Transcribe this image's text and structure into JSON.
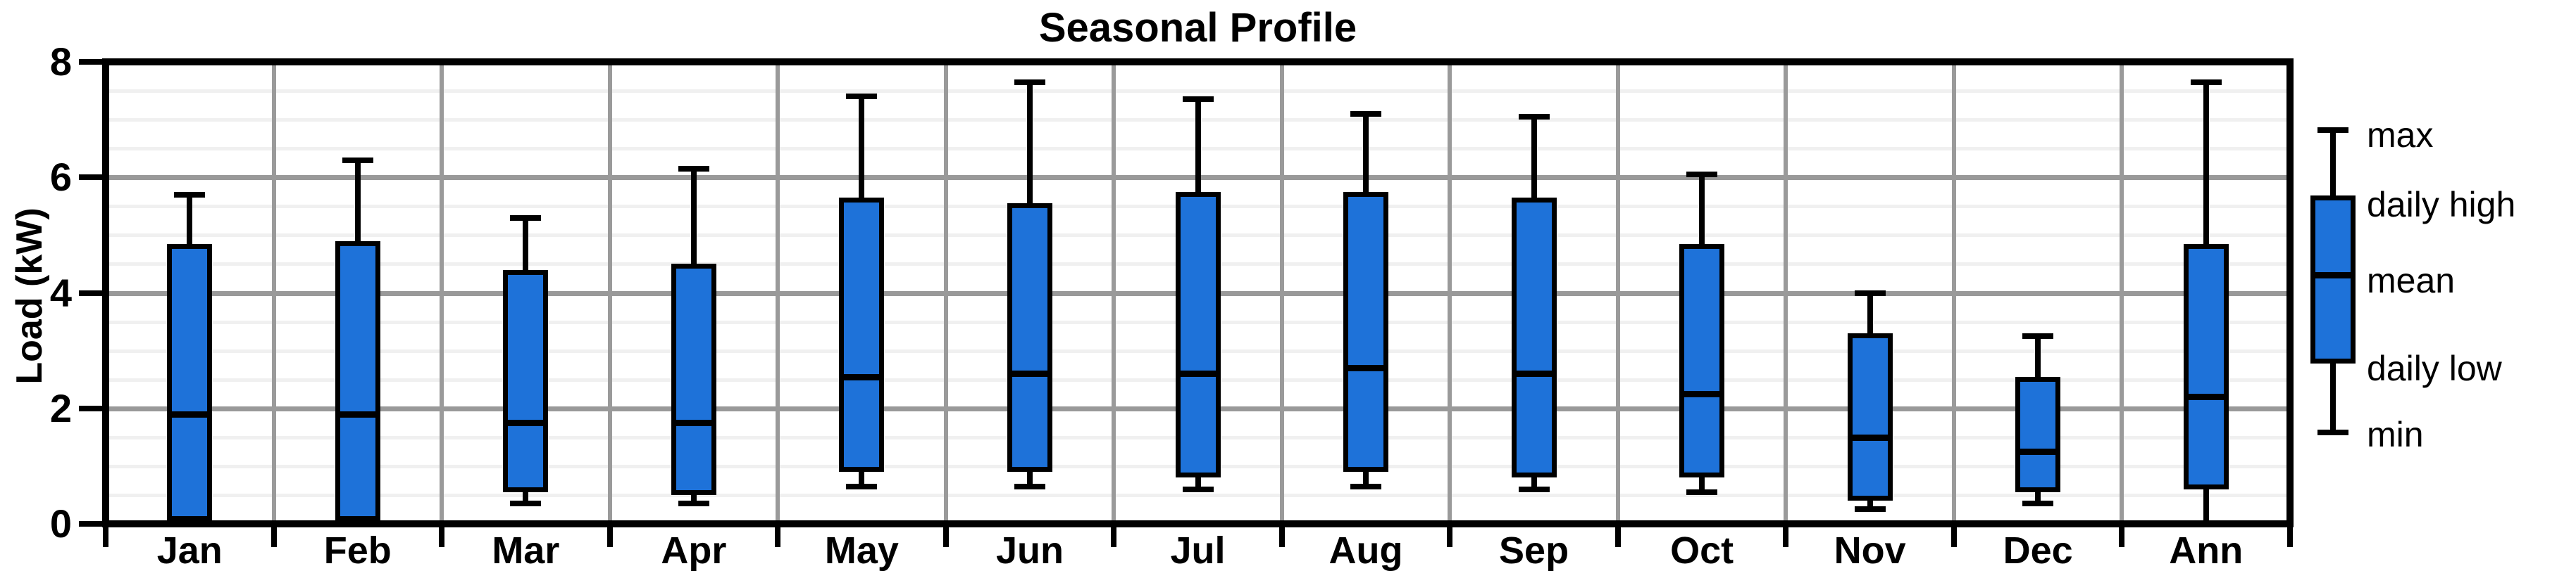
{
  "title": "Seasonal Profile",
  "ylabel": "Load (kW)",
  "colors": {
    "box_fill": "#1e72d9",
    "box_border": "#000000",
    "grid_major": "#999999",
    "grid_minor": "#f0f0f0",
    "month_separator": "#9a9a9a",
    "axis_frame": "#000000",
    "background": "#ffffff",
    "text": "#000000"
  },
  "legend": {
    "labels": [
      "max",
      "daily high",
      "mean",
      "daily low",
      "min"
    ]
  },
  "chart_data": {
    "type": "boxplot",
    "title": "Seasonal Profile",
    "xlabel": "",
    "ylabel": "Load (kW)",
    "ylim": [
      0,
      8
    ],
    "yticks": [
      0,
      2,
      4,
      6,
      8
    ],
    "minor_grid_step": 0.5,
    "grid": "on",
    "legend_position": "right",
    "categories": [
      "Jan",
      "Feb",
      "Mar",
      "Apr",
      "May",
      "Jun",
      "Jul",
      "Aug",
      "Sep",
      "Oct",
      "Nov",
      "Dec",
      "Ann"
    ],
    "series": [
      {
        "name": "max",
        "values": [
          5.7,
          6.3,
          5.3,
          6.15,
          7.4,
          7.65,
          7.35,
          7.1,
          7.05,
          6.05,
          4.0,
          3.25,
          7.65
        ]
      },
      {
        "name": "daily high",
        "values": [
          4.85,
          4.9,
          4.4,
          4.5,
          5.65,
          5.55,
          5.75,
          5.75,
          5.65,
          4.85,
          3.3,
          2.55,
          4.85
        ]
      },
      {
        "name": "mean",
        "values": [
          1.9,
          1.9,
          1.75,
          1.75,
          2.55,
          2.6,
          2.6,
          2.7,
          2.6,
          2.25,
          1.5,
          1.25,
          2.2
        ]
      },
      {
        "name": "daily low",
        "values": [
          0.05,
          0.05,
          0.55,
          0.5,
          0.9,
          0.9,
          0.8,
          0.9,
          0.8,
          0.8,
          0.4,
          0.55,
          0.6
        ]
      },
      {
        "name": "min",
        "values": [
          0.0,
          0.0,
          0.35,
          0.35,
          0.65,
          0.65,
          0.6,
          0.65,
          0.6,
          0.55,
          0.25,
          0.35,
          0.0
        ]
      }
    ]
  }
}
